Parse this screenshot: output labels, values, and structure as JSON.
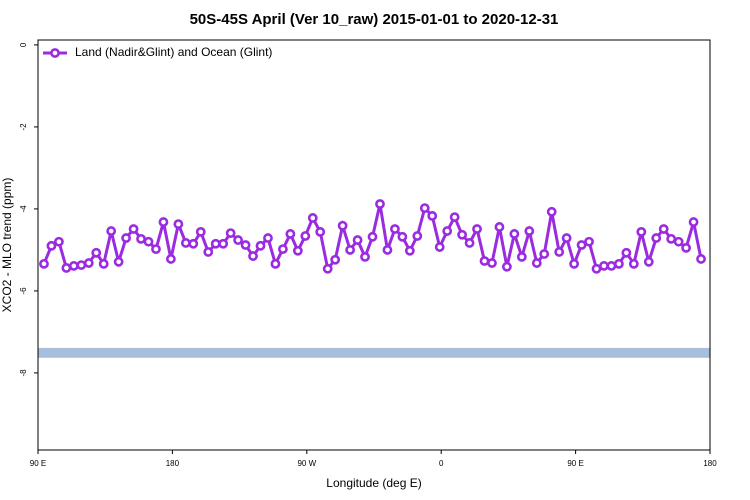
{
  "chart_data": {
    "type": "line",
    "title": "50S-45S April (Ver 10_raw)   2015-01-01 to 2020-12-31",
    "x_label": "Longitude (deg E)",
    "y_label": "XCO2 - MLO trend (ppm)",
    "xlim": [
      90,
      540
    ],
    "xticks": [
      {
        "value": 90,
        "label": "90 E"
      },
      180,
      {
        "value": 270,
        "label": "90 W"
      },
      {
        "value": 360,
        "label": "0"
      },
      {
        "value": 450,
        "label": "90 E"
      },
      {
        "value": 540,
        "label": "180"
      }
    ],
    "ylim": [
      -9.88,
      0.12
    ],
    "yticks": [
      0,
      -2,
      -4,
      -6,
      -8
    ],
    "legend": "upper left",
    "band": {
      "range": [
        -7.39,
        -7.63
      ],
      "color": "#a7bedc"
    },
    "x": [
      94,
      99,
      104,
      109,
      114,
      119,
      124,
      129,
      134,
      139,
      144,
      149,
      154,
      159,
      164,
      169,
      174,
      179,
      184,
      189,
      194,
      199,
      204,
      209,
      214,
      219,
      224,
      229,
      234,
      239,
      244,
      249,
      254,
      259,
      264,
      269,
      274,
      279,
      284,
      289,
      294,
      299,
      304,
      309,
      314,
      319,
      324,
      329,
      334,
      339,
      344,
      349,
      354,
      359,
      364,
      369,
      374,
      379,
      384,
      389,
      394,
      399,
      404,
      409,
      414,
      419,
      424,
      429,
      434,
      439,
      444,
      449,
      454,
      459,
      464,
      469,
      474,
      479,
      484,
      489,
      494,
      499,
      504,
      509,
      514,
      519,
      524,
      529,
      534
    ],
    "series": [
      {
        "name": "Land (Nadir&Glint) and Ocean (Glint)",
        "color": "#9b2be0",
        "values": [
          -5.34,
          -4.9,
          -4.8,
          -5.44,
          -5.39,
          -5.37,
          -5.32,
          -5.07,
          -5.34,
          -4.54,
          -5.29,
          -4.71,
          -4.49,
          -4.73,
          -4.8,
          -4.98,
          -4.32,
          -5.22,
          -4.37,
          -4.83,
          -4.85,
          -4.56,
          -5.05,
          -4.85,
          -4.85,
          -4.59,
          -4.76,
          -4.88,
          -5.15,
          -4.9,
          -4.71,
          -5.34,
          -4.98,
          -4.61,
          -5.02,
          -4.66,
          -4.22,
          -4.56,
          -5.46,
          -5.24,
          -4.41,
          -5.0,
          -4.76,
          -5.17,
          -4.68,
          -3.88,
          -5.0,
          -4.49,
          -4.68,
          -5.02,
          -4.66,
          -3.98,
          -4.17,
          -4.93,
          -4.54,
          -4.2,
          -4.63,
          -4.83,
          -4.49,
          -5.27,
          -5.32,
          -4.44,
          -5.41,
          -4.61,
          -5.17,
          -4.54,
          -5.32,
          -5.1,
          -4.07,
          -5.05,
          -4.71,
          -5.34,
          -4.88,
          -4.8,
          -5.46,
          -5.39,
          -5.39,
          -5.34,
          -5.07,
          -5.34,
          -4.56,
          -5.29,
          -4.71,
          -4.49,
          -4.73,
          -4.8,
          -4.95,
          -4.32,
          -5.22
        ]
      }
    ]
  }
}
